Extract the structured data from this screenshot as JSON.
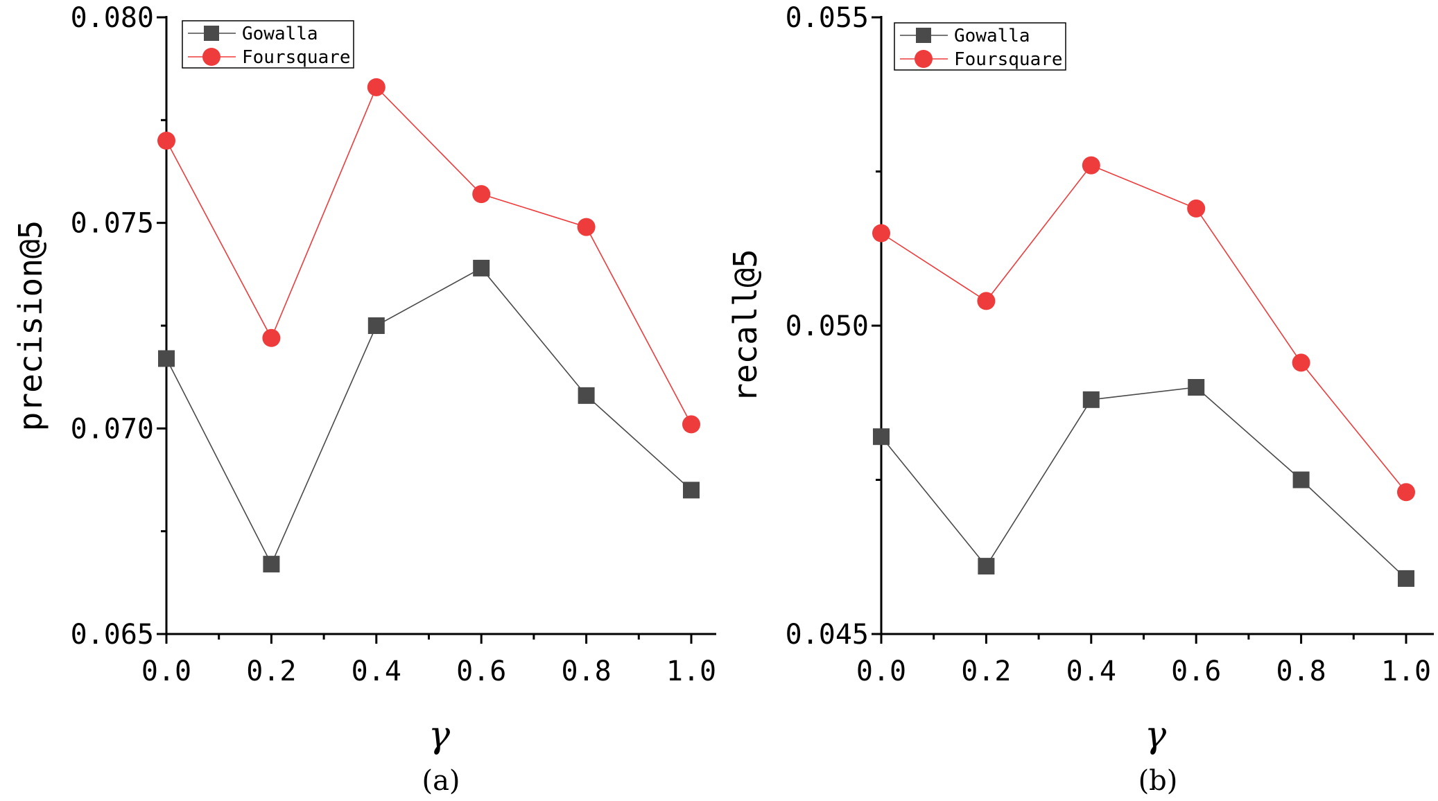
{
  "chart_data": [
    {
      "type": "line",
      "panel_label": "(a)",
      "xlabel": "γ",
      "ylabel": "precision@5",
      "x": [
        0.0,
        0.2,
        0.4,
        0.6,
        0.8,
        1.0
      ],
      "x_tick_labels": [
        "0.0",
        "0.2",
        "0.4",
        "0.6",
        "0.8",
        "1.0"
      ],
      "xlim": [
        0.0,
        1.05
      ],
      "ylim": [
        0.065,
        0.08
      ],
      "y_ticks": [
        0.065,
        0.07,
        0.075,
        0.08
      ],
      "y_tick_labels": [
        "0.065",
        "0.070",
        "0.075",
        "0.080"
      ],
      "legend": "top-left",
      "series": [
        {
          "name": "Gowalla",
          "color": "#4a4a4a",
          "marker": "square",
          "values": [
            0.0717,
            0.0667,
            0.0725,
            0.0739,
            0.0708,
            0.0685
          ]
        },
        {
          "name": "Foursquare",
          "color": "#ee3b3b",
          "marker": "circle",
          "values": [
            0.077,
            0.0722,
            0.0783,
            0.0757,
            0.0749,
            0.0701
          ]
        }
      ]
    },
    {
      "type": "line",
      "panel_label": "(b)",
      "xlabel": "γ",
      "ylabel": "recall@5",
      "x": [
        0.0,
        0.2,
        0.4,
        0.6,
        0.8,
        1.0
      ],
      "x_tick_labels": [
        "0.0",
        "0.2",
        "0.4",
        "0.6",
        "0.8",
        "1.0"
      ],
      "xlim": [
        0.0,
        1.05
      ],
      "ylim": [
        0.045,
        0.055
      ],
      "y_ticks": [
        0.045,
        0.05,
        0.055
      ],
      "y_tick_labels": [
        "0.045",
        "0.050",
        "0.055"
      ],
      "legend": "top-left",
      "series": [
        {
          "name": "Gowalla",
          "color": "#4a4a4a",
          "marker": "square",
          "values": [
            0.0482,
            0.0461,
            0.0488,
            0.049,
            0.0475,
            0.0459
          ]
        },
        {
          "name": "Foursquare",
          "color": "#ee3b3b",
          "marker": "circle",
          "values": [
            0.0515,
            0.0504,
            0.0526,
            0.0519,
            0.0494,
            0.0473
          ]
        }
      ]
    }
  ]
}
